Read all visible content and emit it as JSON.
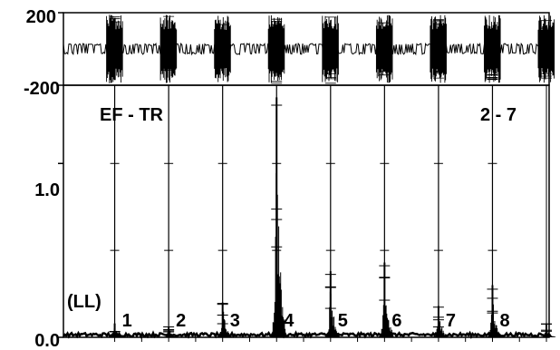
{
  "chart_data": [
    {
      "type": "line",
      "panel": "top",
      "y_ticks": [
        {
          "value": 200,
          "label": "200"
        },
        {
          "value": -200,
          "label": "-200"
        }
      ],
      "ylim": [
        -200,
        200
      ],
      "baseline_band": 30,
      "burst_x": [
        1,
        2,
        3,
        4,
        5,
        6,
        7,
        8
      ],
      "burst_amplitude": 190
    },
    {
      "type": "line",
      "panel": "bottom",
      "title": "EF - TR",
      "annotation": "2 - 7",
      "group_label": "(LL)",
      "y_ticks": [
        {
          "value": 1.0,
          "label": "1.0"
        },
        {
          "value": 0.0,
          "label": "0.0"
        }
      ],
      "ylim": [
        0,
        1.45
      ],
      "xlim": [
        0.05,
        9.05
      ],
      "markers": [
        {
          "label": "1",
          "x": 1
        },
        {
          "label": "2",
          "x": 2
        },
        {
          "label": "3",
          "x": 3
        },
        {
          "label": "4",
          "x": 4
        },
        {
          "label": "5",
          "x": 5
        },
        {
          "label": "6",
          "x": 6
        },
        {
          "label": "7",
          "x": 7
        },
        {
          "label": "8",
          "x": 8
        }
      ],
      "peaks": [
        {
          "x": 1,
          "value": 0.08
        },
        {
          "x": 2,
          "value": 0.06
        },
        {
          "x": 3,
          "value": 0.2
        },
        {
          "x": 4,
          "value": 1.38
        },
        {
          "x": 5,
          "value": 0.38
        },
        {
          "x": 6,
          "value": 0.43
        },
        {
          "x": 7,
          "value": 0.18
        },
        {
          "x": 8,
          "value": 0.3
        },
        {
          "x": 9,
          "value": 0.08
        }
      ]
    }
  ]
}
